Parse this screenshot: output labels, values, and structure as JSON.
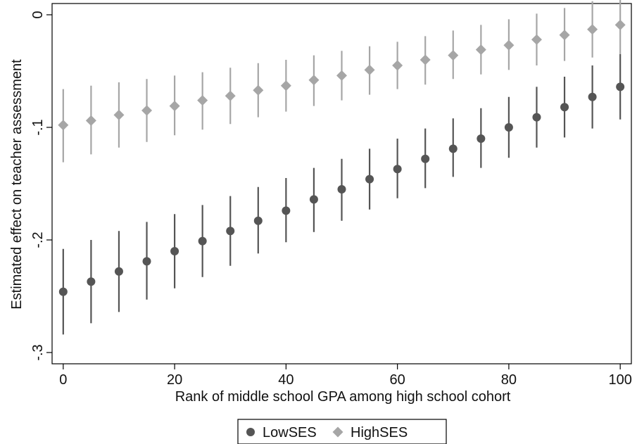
{
  "chart_data": {
    "type": "scatter",
    "xlabel": "Rank of middle school GPA among high school cohort",
    "ylabel": "Estimated effect on teacher assessment",
    "xlim": [
      -2,
      102
    ],
    "ylim": [
      -0.31,
      0.01
    ],
    "x_ticks": [
      0,
      20,
      40,
      60,
      80,
      100
    ],
    "x_tick_labels": [
      "0",
      "20",
      "40",
      "60",
      "80",
      "100"
    ],
    "y_ticks": [
      -0.3,
      -0.2,
      -0.1,
      0
    ],
    "y_tick_labels": [
      "-.3",
      "-.2",
      "-.1",
      "0"
    ],
    "grid": false,
    "legend_position": "bottom",
    "x": [
      0,
      5,
      10,
      15,
      20,
      25,
      30,
      35,
      40,
      45,
      50,
      55,
      60,
      65,
      70,
      75,
      80,
      85,
      90,
      95,
      100
    ],
    "series": [
      {
        "name": "LowSES",
        "color": "#555555",
        "marker": "circle",
        "values": [
          -0.246,
          -0.237,
          -0.228,
          -0.219,
          -0.21,
          -0.201,
          -0.192,
          -0.183,
          -0.174,
          -0.164,
          -0.155,
          -0.146,
          -0.137,
          -0.128,
          -0.119,
          -0.11,
          -0.1,
          -0.091,
          -0.082,
          -0.073,
          -0.064
        ],
        "ci_low": [
          -0.284,
          -0.274,
          -0.264,
          -0.253,
          -0.243,
          -0.233,
          -0.223,
          -0.212,
          -0.202,
          -0.193,
          -0.183,
          -0.173,
          -0.163,
          -0.154,
          -0.144,
          -0.136,
          -0.127,
          -0.118,
          -0.109,
          -0.101,
          -0.093
        ],
        "ci_high": [
          -0.208,
          -0.2,
          -0.192,
          -0.184,
          -0.177,
          -0.169,
          -0.161,
          -0.153,
          -0.145,
          -0.136,
          -0.128,
          -0.119,
          -0.11,
          -0.101,
          -0.092,
          -0.083,
          -0.073,
          -0.064,
          -0.055,
          -0.045,
          -0.035
        ]
      },
      {
        "name": "HighSES",
        "color": "#a6a6a6",
        "marker": "diamond",
        "values": [
          -0.098,
          -0.094,
          -0.089,
          -0.085,
          -0.081,
          -0.076,
          -0.072,
          -0.067,
          -0.063,
          -0.058,
          -0.054,
          -0.049,
          -0.045,
          -0.04,
          -0.036,
          -0.031,
          -0.027,
          -0.022,
          -0.018,
          -0.013,
          -0.009
        ],
        "ci_low": [
          -0.131,
          -0.124,
          -0.118,
          -0.113,
          -0.107,
          -0.102,
          -0.097,
          -0.091,
          -0.086,
          -0.081,
          -0.076,
          -0.071,
          -0.066,
          -0.062,
          -0.057,
          -0.053,
          -0.049,
          -0.045,
          -0.041,
          -0.038,
          -0.035
        ],
        "ci_high": [
          -0.066,
          -0.063,
          -0.06,
          -0.057,
          -0.054,
          -0.051,
          -0.047,
          -0.043,
          -0.04,
          -0.036,
          -0.032,
          -0.028,
          -0.024,
          -0.019,
          -0.014,
          -0.009,
          -0.004,
          0.001,
          0.006,
          0.012,
          0.017
        ]
      }
    ]
  }
}
